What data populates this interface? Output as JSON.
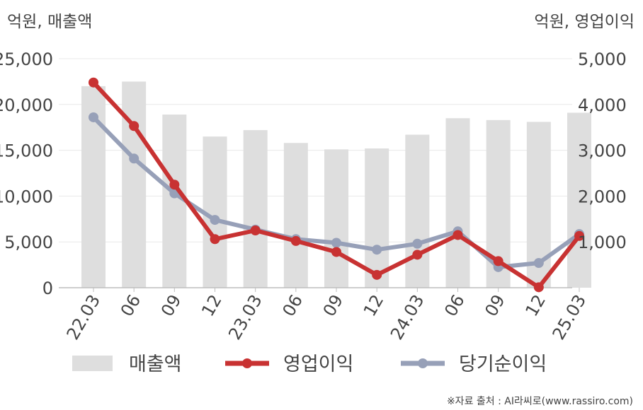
{
  "colors": {
    "revenue": "#dedede",
    "operating_profit": "#c83232",
    "net_income": "#97a0b8",
    "grid": "#e8e8e8",
    "axis": "#bdbdbd",
    "text": "#444444"
  },
  "chart_data": {
    "type": "bar",
    "categories": [
      "22.03",
      "06",
      "09",
      "12",
      "23.03",
      "06",
      "09",
      "12",
      "24.03",
      "06",
      "09",
      "12",
      "25.03"
    ],
    "left_axis_label": "억원, 매출액",
    "right_axis_label": "억원, 영업이익",
    "y_left_ticks": [
      "0",
      "5,000",
      "10,000",
      "15,000",
      "20,000",
      "25,000"
    ],
    "y_right_ticks": [
      "1,000",
      "2,000",
      "3,000",
      "4,000",
      "5,000"
    ],
    "ylim_left": [
      0,
      25000
    ],
    "ylim_right": [
      0,
      5000
    ],
    "grid": true,
    "legend_position": "bottom",
    "series": [
      {
        "name": "매출액",
        "type": "bar",
        "axis": "left",
        "values": [
          22000,
          22500,
          18900,
          16500,
          17200,
          15800,
          15100,
          15200,
          16700,
          18500,
          18300,
          18100,
          19100
        ]
      },
      {
        "name": "영업이익",
        "type": "line",
        "axis": "right",
        "values": [
          4480,
          3530,
          2250,
          1060,
          1250,
          1020,
          780,
          280,
          720,
          1150,
          580,
          10,
          1130
        ]
      },
      {
        "name": "당기순이익",
        "type": "line",
        "axis": "right",
        "values": [
          3720,
          2820,
          2060,
          1480,
          1270,
          1060,
          980,
          830,
          960,
          1230,
          450,
          540,
          1170
        ]
      }
    ]
  },
  "source_note": "※자료 출처 : AI라씨로(www.rassiro.com)"
}
